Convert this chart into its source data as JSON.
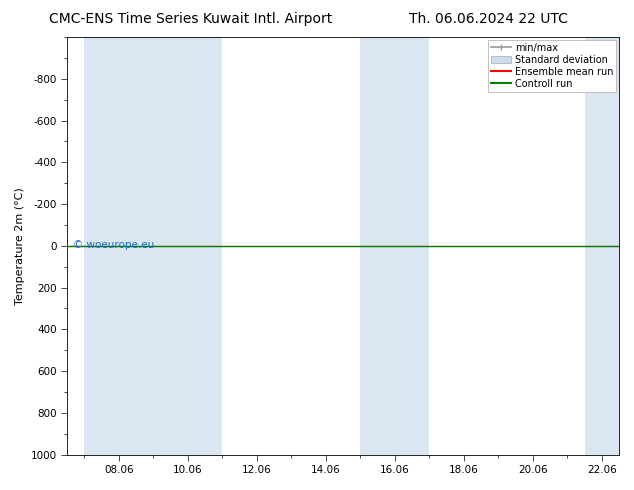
{
  "title_left": "CMC-ENS Time Series Kuwait Intl. Airport",
  "title_right": "Th. 06.06.2024 22 UTC",
  "ylabel": "Temperature 2m (°C)",
  "ylim_bottom": 1000,
  "ylim_top": -1000,
  "yticks": [
    -800,
    -600,
    -400,
    -200,
    0,
    200,
    400,
    600,
    800,
    1000
  ],
  "xtick_labels": [
    "08.06",
    "10.06",
    "12.06",
    "14.06",
    "16.06",
    "18.06",
    "20.06",
    "22.06"
  ],
  "xtick_positions": [
    2,
    4,
    6,
    8,
    10,
    12,
    14,
    16
  ],
  "x_min": 0.5,
  "x_max": 16.5,
  "watermark": "© woeurope.eu",
  "watermark_color": "#1a6bc9",
  "shaded_bands": [
    {
      "x_start": 1.0,
      "x_end": 3.0
    },
    {
      "x_start": 3.0,
      "x_end": 5.0
    },
    {
      "x_start": 9.0,
      "x_end": 11.0
    },
    {
      "x_start": 15.5,
      "x_end": 16.5
    }
  ],
  "control_run_y": 0,
  "control_run_color": "#008000",
  "ensemble_mean_color": "#ff0000",
  "minmax_color": "#999999",
  "stddev_color": "#ccdcee",
  "background_color": "#ffffff",
  "plot_bg_color": "#ffffff",
  "legend_labels": [
    "min/max",
    "Standard deviation",
    "Ensemble mean run",
    "Controll run"
  ],
  "legend_colors": [
    "#999999",
    "#ccdcee",
    "#ff0000",
    "#008000"
  ],
  "title_fontsize": 10,
  "axis_fontsize": 8,
  "tick_fontsize": 7.5
}
